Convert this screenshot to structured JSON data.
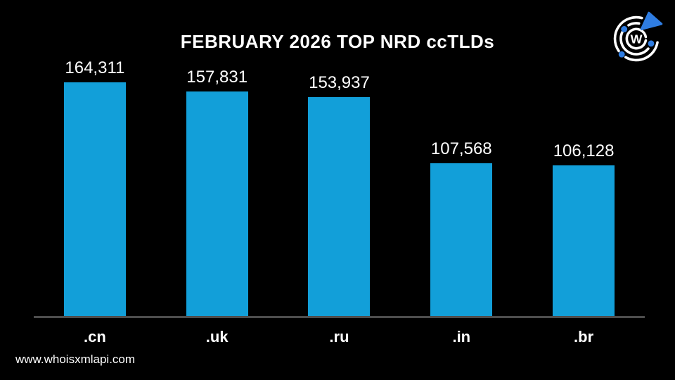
{
  "title": "FEBRUARY 2026 TOP NRD ccTLDs",
  "website": "www.whoisxmlapi.com",
  "logo": {
    "letter": "W",
    "name": "whoisxmlapi-logo"
  },
  "colors": {
    "background": "#000000",
    "bar": "#129fd9",
    "axis_line": "#4d4d4d",
    "text": "#ffffff",
    "logo_blue": "#2f7de2"
  },
  "chart_data": {
    "type": "bar",
    "title": "FEBRUARY 2026 TOP NRD ccTLDs",
    "categories": [
      ".cn",
      ".uk",
      ".ru",
      ".in",
      ".br"
    ],
    "values": [
      164311,
      157831,
      153937,
      107568,
      106128
    ],
    "value_labels": [
      "164,311",
      "157,831",
      "153,937",
      "107,568",
      "106,128"
    ],
    "xlabel": "",
    "ylabel": "",
    "ylim": [
      0,
      170000
    ],
    "grid": false,
    "legend": false,
    "bar_color": "#129fd9",
    "background": "#000000",
    "value_labels_position": "above-bars",
    "axis_shown": "x-baseline-only"
  }
}
